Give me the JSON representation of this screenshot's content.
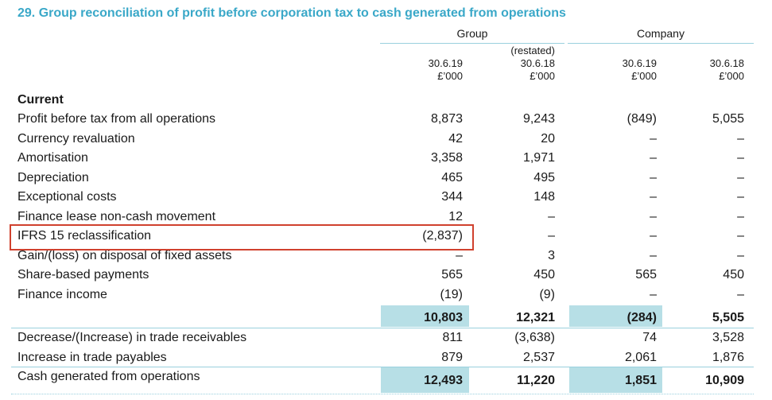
{
  "title": "29. Group reconciliation of profit before corporation tax to cash generated from operations",
  "groups": {
    "group": "Group",
    "company": "Company"
  },
  "columns": [
    {
      "restated": "",
      "date": "30.6.19",
      "unit": "£’000"
    },
    {
      "restated": "(restated)",
      "date": "30.6.18",
      "unit": "£’000"
    },
    {
      "restated": "",
      "date": "30.6.19",
      "unit": "£’000"
    },
    {
      "restated": "",
      "date": "30.6.18",
      "unit": "£’000"
    }
  ],
  "section": "Current",
  "rows": [
    {
      "label": "Profit before tax from all operations",
      "v": [
        "8,873",
        "9,243",
        "(849)",
        "5,055"
      ]
    },
    {
      "label": "Currency revaluation",
      "v": [
        "42",
        "20",
        "–",
        "–"
      ]
    },
    {
      "label": "Amortisation",
      "v": [
        "3,358",
        "1,971",
        "–",
        "–"
      ]
    },
    {
      "label": "Depreciation",
      "v": [
        "465",
        "495",
        "–",
        "–"
      ]
    },
    {
      "label": "Exceptional costs",
      "v": [
        "344",
        "148",
        "–",
        "–"
      ]
    },
    {
      "label": "Finance lease non-cash movement",
      "v": [
        "12",
        "–",
        "–",
        "–"
      ]
    },
    {
      "label": "IFRS 15 reclassification",
      "v": [
        "(2,837)",
        "–",
        "–",
        "–"
      ]
    },
    {
      "label": "Gain/(loss) on disposal of fixed assets",
      "v": [
        "–",
        "3",
        "–",
        "–"
      ]
    },
    {
      "label": "Share-based payments",
      "v": [
        "565",
        "450",
        "565",
        "450"
      ]
    },
    {
      "label": "Finance income",
      "v": [
        "(19)",
        "(9)",
        "–",
        "–"
      ]
    }
  ],
  "subtotal": [
    "10,803",
    "12,321",
    "(284)",
    "5,505"
  ],
  "rows2": [
    {
      "label": "Decrease/(Increase) in trade receivables",
      "v": [
        "811",
        "(3,638)",
        "74",
        "3,528"
      ]
    },
    {
      "label": "Increase in trade payables",
      "v": [
        "879",
        "2,537",
        "2,061",
        "1,876"
      ]
    }
  ],
  "total": {
    "label": "Cash generated from operations",
    "v": [
      "12,493",
      "11,220",
      "1,851",
      "10,909"
    ]
  },
  "colors": {
    "accent": "#3aa8c8",
    "shade": "#b7dfe6",
    "highlight": "#d0412e"
  }
}
